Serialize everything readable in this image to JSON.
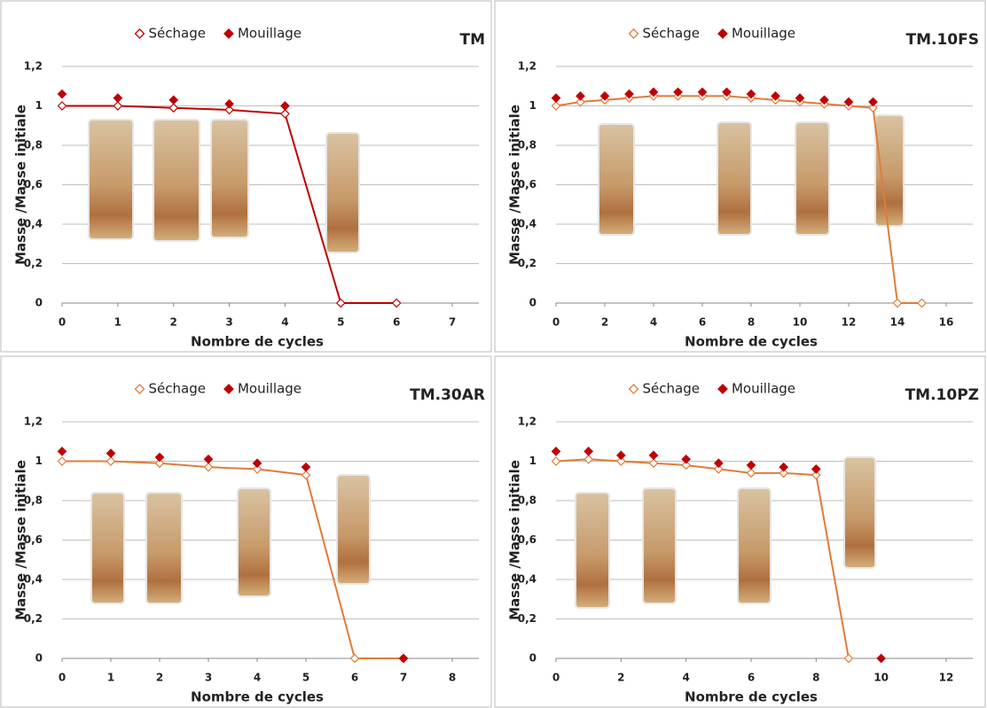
{
  "chart_data": [
    {
      "type": "line",
      "title": "TM",
      "xlabel": "Nombre de cycles",
      "ylabel": "Masse /Masse initiale",
      "x": [
        0,
        1,
        2,
        3,
        4,
        5,
        6
      ],
      "xlim": [
        0,
        7
      ],
      "xticks": [
        0,
        1,
        2,
        3,
        4,
        5,
        6,
        7
      ],
      "ylim": [
        0,
        1.2
      ],
      "yticks": [
        0,
        {
          "value": 0.2,
          "label": "0,2"
        },
        {
          "value": 0.4,
          "label": "0,4"
        },
        {
          "value": 0.6,
          "label": "0,6"
        },
        {
          "value": 0.8,
          "label": "0,8"
        },
        1,
        {
          "value": 1.2,
          "label": "1,2"
        }
      ],
      "grid": true,
      "series": [
        {
          "name": "Séchage",
          "color": "#c00000",
          "marker": "hollow-diamond",
          "line": true,
          "values": [
            1.0,
            1.0,
            0.99,
            0.98,
            0.96,
            0,
            0
          ]
        },
        {
          "name": "Mouillage",
          "color": "#c00000",
          "marker": "diamond",
          "line": false,
          "values": [
            1.06,
            1.04,
            1.03,
            1.01,
            1.0,
            null,
            null
          ]
        }
      ]
    },
    {
      "type": "line",
      "title": "TM.10FS",
      "xlabel": "Nombre de cycles",
      "ylabel": "Masse /Masse initiale",
      "x": [
        0,
        1,
        2,
        3,
        4,
        5,
        6,
        7,
        8,
        9,
        10,
        11,
        12,
        13,
        14,
        15
      ],
      "xlim": [
        0,
        16
      ],
      "xticks": [
        0,
        2,
        4,
        6,
        8,
        10,
        12,
        14,
        16
      ],
      "ylim": [
        0,
        1.2
      ],
      "yticks": [
        0,
        {
          "value": 0.2,
          "label": "0,2"
        },
        {
          "value": 0.4,
          "label": "0,4"
        },
        {
          "value": 0.6,
          "label": "0,6"
        },
        {
          "value": 0.8,
          "label": "0,8"
        },
        1,
        {
          "value": 1.2,
          "label": "1,2"
        }
      ],
      "grid": true,
      "series": [
        {
          "name": "Séchage",
          "color": "#e07b39",
          "marker": "hollow-diamond",
          "line": true,
          "values": [
            1.0,
            1.02,
            1.03,
            1.04,
            1.05,
            1.05,
            1.05,
            1.05,
            1.04,
            1.03,
            1.02,
            1.01,
            1.0,
            0.99,
            0,
            0
          ]
        },
        {
          "name": "Mouillage",
          "color": "#c00000",
          "marker": "diamond",
          "line": false,
          "values": [
            1.04,
            1.05,
            1.05,
            1.06,
            1.07,
            1.07,
            1.07,
            1.07,
            1.06,
            1.05,
            1.04,
            1.03,
            1.02,
            1.02,
            null,
            null
          ]
        }
      ]
    },
    {
      "type": "line",
      "title": "TM.30AR",
      "xlabel": "Nombre de cycles",
      "ylabel": "Masse /Masse initiale",
      "x": [
        0,
        1,
        2,
        3,
        4,
        5,
        6,
        7
      ],
      "xlim": [
        0,
        8
      ],
      "xticks": [
        0,
        1,
        2,
        3,
        4,
        5,
        6,
        7,
        8
      ],
      "ylim": [
        0,
        1.2
      ],
      "yticks": [
        0,
        {
          "value": 0.2,
          "label": "0,2"
        },
        {
          "value": 0.4,
          "label": "0,4"
        },
        {
          "value": 0.6,
          "label": "0,6"
        },
        {
          "value": 0.8,
          "label": "0,8"
        },
        1,
        {
          "value": 1.2,
          "label": "1,2"
        }
      ],
      "grid": true,
      "series": [
        {
          "name": "Séchage",
          "color": "#e07b39",
          "marker": "hollow-diamond",
          "line": true,
          "values": [
            1.0,
            1.0,
            0.99,
            0.97,
            0.96,
            0.93,
            0,
            0
          ]
        },
        {
          "name": "Mouillage",
          "color": "#c00000",
          "marker": "diamond",
          "line": false,
          "values": [
            1.05,
            1.04,
            1.02,
            1.01,
            0.99,
            0.97,
            null,
            0
          ]
        }
      ]
    },
    {
      "type": "line",
      "title": "TM.10PZ",
      "xlabel": "Nombre de cycles",
      "ylabel": "Masse /Masse initiale",
      "x": [
        0,
        1,
        2,
        3,
        4,
        5,
        6,
        7,
        8,
        9,
        10
      ],
      "xlim": [
        0,
        12
      ],
      "xticks": [
        0,
        2,
        4,
        6,
        8,
        10,
        12
      ],
      "ylim": [
        0,
        1.2
      ],
      "yticks": [
        0,
        {
          "value": 0.2,
          "label": "0,2"
        },
        {
          "value": 0.4,
          "label": "0,4"
        },
        {
          "value": 0.6,
          "label": "0,6"
        },
        {
          "value": 0.8,
          "label": "0,8"
        },
        1,
        {
          "value": 1.2,
          "label": "1,2"
        }
      ],
      "grid": true,
      "series": [
        {
          "name": "Séchage",
          "color": "#e07b39",
          "marker": "hollow-diamond",
          "line": true,
          "values": [
            1.0,
            1.01,
            1.0,
            0.99,
            0.98,
            0.96,
            0.94,
            0.94,
            0.93,
            0,
            null
          ]
        },
        {
          "name": "Mouillage",
          "color": "#c00000",
          "marker": "diamond",
          "line": false,
          "values": [
            1.05,
            1.05,
            1.03,
            1.03,
            1.01,
            0.99,
            0.98,
            0.97,
            0.96,
            null,
            0
          ]
        }
      ]
    }
  ]
}
